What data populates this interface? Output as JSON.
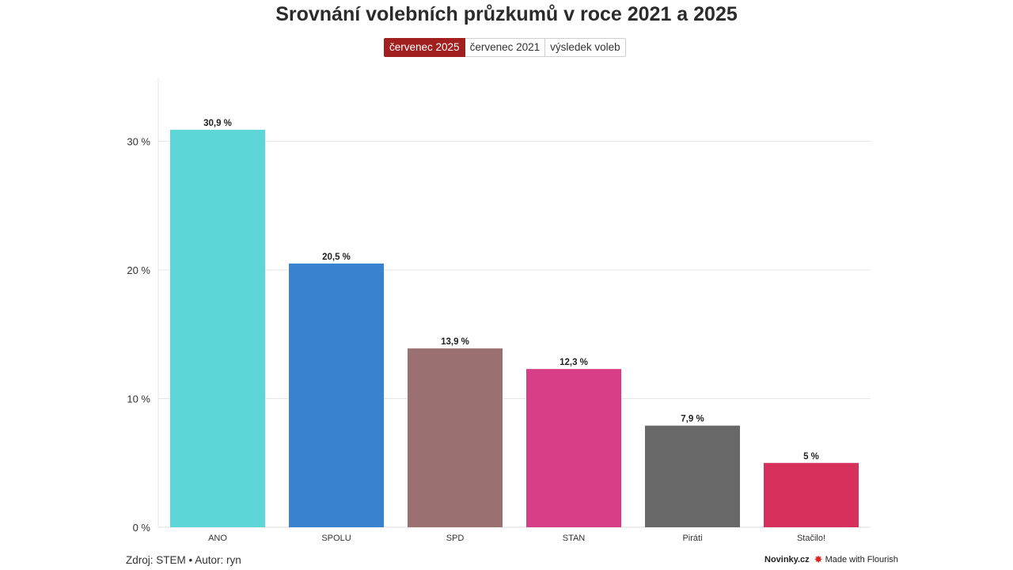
{
  "tabs": [
    {
      "label": "červenec 2025",
      "active": true
    },
    {
      "label": "červenec 2021",
      "active": false
    },
    {
      "label": "výsledek voleb",
      "active": false
    }
  ],
  "footer": {
    "source": "Zdroj: STEM • Autor: ryn",
    "brand": "Novinky.cz",
    "made_with": "Made with Flourish",
    "flourish_icon": "flourish-burst-icon"
  },
  "colors": {
    "active_tab": "#a11f1e",
    "gridline": "#e6e6e6"
  },
  "chart_data": {
    "type": "bar",
    "title": "Srovnání volebních průzkumů v roce 2021 a 2025",
    "categories": [
      "ANO",
      "SPOLU",
      "SPD",
      "STAN",
      "Piráti",
      "Stačilo!"
    ],
    "values": [
      30.9,
      20.5,
      13.9,
      12.3,
      7.9,
      5
    ],
    "value_labels": [
      "30,9 %",
      "20,5 %",
      "13,9 %",
      "12,3 %",
      "7,9 %",
      "5 %"
    ],
    "colors": [
      "#5cd6d6",
      "#3883cf",
      "#9b7070",
      "#d63e87",
      "#686868",
      "#d6305c"
    ],
    "yticks": [
      0,
      10,
      20,
      30
    ],
    "ytick_labels": [
      "0 %",
      "10 %",
      "20 %",
      "30 %"
    ],
    "ylim": [
      0,
      35
    ],
    "xlabel": "",
    "ylabel": "",
    "grid": true,
    "legend": "none"
  }
}
